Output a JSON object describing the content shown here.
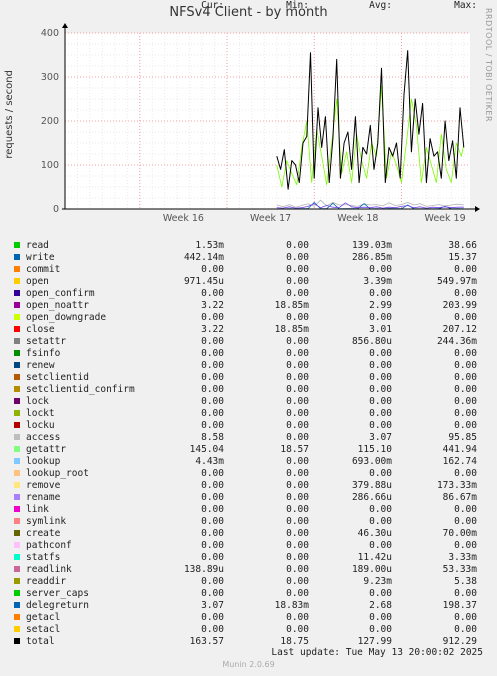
{
  "title": "NFSv4 Client - by month",
  "watermark": "RRDTOOL / TOBI OETIKER",
  "chart_data": {
    "type": "line",
    "title": "NFSv4 Client - by month",
    "ylabel": "requests / second",
    "xlabel": "",
    "ylim": [
      0,
      400
    ],
    "yticks": [
      0,
      100,
      200,
      300,
      400
    ],
    "xticks": [
      "Week 16",
      "Week 17",
      "Week 18",
      "Week 19"
    ],
    "grid": true,
    "series": [
      {
        "name": "total",
        "color": "#000000",
        "x_days": [
          17.0,
          17.3,
          17.6,
          17.9,
          18.2,
          18.5,
          18.8,
          19.1,
          19.4,
          19.7,
          20.0,
          20.3,
          20.6,
          20.9,
          21.2,
          21.5,
          21.8,
          22.1,
          22.4,
          22.7,
          23.0,
          23.3,
          23.6,
          23.9,
          24.2,
          24.5,
          24.8,
          25.1,
          25.4,
          25.7,
          26.0,
          26.3,
          26.6,
          26.9,
          27.2,
          27.5,
          27.8,
          28.1,
          28.4,
          28.7,
          29.0,
          29.3,
          29.6,
          29.9,
          30.2,
          30.5,
          30.8,
          31.1,
          31.4,
          31.7,
          32.0
        ],
        "values": [
          120,
          90,
          135,
          45,
          110,
          100,
          60,
          150,
          165,
          355,
          70,
          230,
          140,
          210,
          60,
          160,
          340,
          70,
          150,
          175,
          90,
          210,
          60,
          140,
          125,
          190,
          90,
          150,
          320,
          60,
          140,
          120,
          150,
          70,
          260,
          360,
          130,
          250,
          170,
          240,
          60,
          160,
          120,
          130,
          70,
          200,
          110,
          155,
          70,
          230,
          140
        ]
      },
      {
        "name": "access",
        "color": "#b4b4b4",
        "x_days": [
          17.0,
          17.5,
          18.0,
          18.5,
          19.0,
          19.5,
          20.0,
          20.5,
          21.0,
          21.5,
          22.0,
          22.5,
          23.0,
          23.5,
          24.0,
          24.5,
          25.0,
          25.5,
          26.0,
          26.5,
          27.0,
          27.5,
          28.0,
          28.5,
          29.0,
          29.5,
          30.0,
          30.5,
          31.0,
          31.5,
          32.0
        ],
        "values": [
          9,
          5,
          10,
          4,
          8,
          12,
          6,
          20,
          7,
          15,
          9,
          10,
          8,
          6,
          12,
          9,
          10,
          7,
          14,
          8,
          10,
          15,
          9,
          12,
          6,
          8,
          10,
          7,
          9,
          11,
          9
        ]
      },
      {
        "name": "getattr",
        "color": "#7cfc00",
        "x_days": [
          17.0,
          17.4,
          17.8,
          18.2,
          18.6,
          19.0,
          19.4,
          19.8,
          20.2,
          20.6,
          21.0,
          21.4,
          21.8,
          22.2,
          22.6,
          23.0,
          23.4,
          23.8,
          24.2,
          24.6,
          25.0,
          25.4,
          25.8,
          26.2,
          26.6,
          27.0,
          27.4,
          27.8,
          28.2,
          28.6,
          29.0,
          29.4,
          29.8,
          30.2,
          30.6,
          31.0,
          31.4,
          31.8,
          32.0
        ],
        "values": [
          100,
          50,
          110,
          80,
          55,
          140,
          200,
          60,
          180,
          120,
          55,
          150,
          250,
          80,
          130,
          60,
          170,
          110,
          70,
          150,
          120,
          280,
          70,
          130,
          100,
          60,
          150,
          250,
          190,
          60,
          140,
          100,
          60,
          170,
          90,
          60,
          150,
          120,
          145
        ]
      },
      {
        "name": "write",
        "color": "#0066b3",
        "x_days": [
          17.0,
          17.5,
          18.0,
          18.5,
          19.0,
          19.5,
          20.0,
          20.5,
          21.0,
          21.5,
          22.0,
          22.5,
          23.0,
          23.5,
          24.0,
          24.5,
          25.0,
          25.5,
          26.0,
          26.5,
          27.0,
          27.5,
          28.0,
          28.5,
          29.0,
          29.5,
          30.0,
          30.5,
          31.0,
          31.5,
          32.0
        ],
        "values": [
          0.5,
          0.3,
          1,
          0.4,
          0.6,
          0.8,
          15,
          1,
          0.6,
          13,
          0.5,
          1,
          0.6,
          0.8,
          12,
          0.5,
          0.9,
          0.4,
          1.2,
          0.6,
          0.6,
          9,
          0.8,
          0.4,
          1,
          0.5,
          0.7,
          6,
          0.4,
          0.6,
          0.5
        ]
      },
      {
        "name": "lookup",
        "color": "#7648ec",
        "x_days": [
          17.0,
          17.5,
          18.0,
          18.5,
          19.0,
          19.5,
          20.0,
          20.5,
          21.0,
          21.5,
          22.0,
          22.5,
          23.0,
          23.5,
          24.0,
          24.5,
          25.0,
          25.5,
          26.0,
          26.5,
          27.0,
          27.5,
          28.0,
          28.5,
          29.0,
          29.5,
          30.0,
          30.5,
          31.0,
          31.5,
          32.0
        ],
        "values": [
          3,
          2,
          5,
          2,
          3,
          6,
          12,
          3,
          8,
          4,
          3,
          14,
          5,
          3,
          4,
          3,
          5,
          2,
          4,
          3,
          6,
          8,
          3,
          5,
          2,
          4,
          3,
          5,
          3,
          4,
          4
        ]
      }
    ],
    "legend": {
      "headers": {
        "cur": "Cur:",
        "min": "Min:",
        "avg": "Avg:",
        "max": "Max:"
      },
      "rows": [
        {
          "name": "read",
          "color": "#00cc00",
          "cur": "1.53m",
          "min": "0.00",
          "avg": "139.03m",
          "max": "38.66"
        },
        {
          "name": "write",
          "color": "#0066b3",
          "cur": "442.14m",
          "min": "0.00",
          "avg": "286.85m",
          "max": "15.37"
        },
        {
          "name": "commit",
          "color": "#ff8000",
          "cur": "0.00",
          "min": "0.00",
          "avg": "0.00",
          "max": "0.00"
        },
        {
          "name": "open",
          "color": "#ffcc00",
          "cur": "971.45u",
          "min": "0.00",
          "avg": "3.39m",
          "max": "549.97m"
        },
        {
          "name": "open_confirm",
          "color": "#330099",
          "cur": "0.00",
          "min": "0.00",
          "avg": "0.00",
          "max": "0.00"
        },
        {
          "name": "open_noattr",
          "color": "#990099",
          "cur": "3.22",
          "min": "18.85m",
          "avg": "2.99",
          "max": "203.99"
        },
        {
          "name": "open_downgrade",
          "color": "#ccff00",
          "cur": "0.00",
          "min": "0.00",
          "avg": "0.00",
          "max": "0.00"
        },
        {
          "name": "close",
          "color": "#ff0000",
          "cur": "3.22",
          "min": "18.85m",
          "avg": "3.01",
          "max": "207.12"
        },
        {
          "name": "setattr",
          "color": "#808080",
          "cur": "0.00",
          "min": "0.00",
          "avg": "856.80u",
          "max": "244.36m"
        },
        {
          "name": "fsinfo",
          "color": "#008f00",
          "cur": "0.00",
          "min": "0.00",
          "avg": "0.00",
          "max": "0.00"
        },
        {
          "name": "renew",
          "color": "#00487d",
          "cur": "0.00",
          "min": "0.00",
          "avg": "0.00",
          "max": "0.00"
        },
        {
          "name": "setclientid",
          "color": "#b35a00",
          "cur": "0.00",
          "min": "0.00",
          "avg": "0.00",
          "max": "0.00"
        },
        {
          "name": "setclientid_confirm",
          "color": "#b38f00",
          "cur": "0.00",
          "min": "0.00",
          "avg": "0.00",
          "max": "0.00"
        },
        {
          "name": "lock",
          "color": "#6b006b",
          "cur": "0.00",
          "min": "0.00",
          "avg": "0.00",
          "max": "0.00"
        },
        {
          "name": "lockt",
          "color": "#8fb300",
          "cur": "0.00",
          "min": "0.00",
          "avg": "0.00",
          "max": "0.00"
        },
        {
          "name": "locku",
          "color": "#b30000",
          "cur": "0.00",
          "min": "0.00",
          "avg": "0.00",
          "max": "0.00"
        },
        {
          "name": "access",
          "color": "#bebebe",
          "cur": "8.58",
          "min": "0.00",
          "avg": "3.07",
          "max": "95.85"
        },
        {
          "name": "getattr",
          "color": "#80ff80",
          "cur": "145.04",
          "min": "18.57",
          "avg": "115.10",
          "max": "441.94"
        },
        {
          "name": "lookup",
          "color": "#80c9ff",
          "cur": "4.43m",
          "min": "0.00",
          "avg": "693.00m",
          "max": "162.74"
        },
        {
          "name": "lookup_root",
          "color": "#ffc080",
          "cur": "0.00",
          "min": "0.00",
          "avg": "0.00",
          "max": "0.00"
        },
        {
          "name": "remove",
          "color": "#ffe680",
          "cur": "0.00",
          "min": "0.00",
          "avg": "379.88u",
          "max": "173.33m"
        },
        {
          "name": "rename",
          "color": "#aa80ff",
          "cur": "0.00",
          "min": "0.00",
          "avg": "286.66u",
          "max": "86.67m"
        },
        {
          "name": "link",
          "color": "#ee00cc",
          "cur": "0.00",
          "min": "0.00",
          "avg": "0.00",
          "max": "0.00"
        },
        {
          "name": "symlink",
          "color": "#ff8080",
          "cur": "0.00",
          "min": "0.00",
          "avg": "0.00",
          "max": "0.00"
        },
        {
          "name": "create",
          "color": "#666600",
          "cur": "0.00",
          "min": "0.00",
          "avg": "46.30u",
          "max": "70.00m"
        },
        {
          "name": "pathconf",
          "color": "#ffbfff",
          "cur": "0.00",
          "min": "0.00",
          "avg": "0.00",
          "max": "0.00"
        },
        {
          "name": "statfs",
          "color": "#00ffcc",
          "cur": "0.00",
          "min": "0.00",
          "avg": "11.42u",
          "max": "3.33m"
        },
        {
          "name": "readlink",
          "color": "#cc6699",
          "cur": "138.89u",
          "min": "0.00",
          "avg": "189.00u",
          "max": "53.33m"
        },
        {
          "name": "readdir",
          "color": "#999900",
          "cur": "0.00",
          "min": "0.00",
          "avg": "9.23m",
          "max": "5.38"
        },
        {
          "name": "server_caps",
          "color": "#00cc00",
          "cur": "0.00",
          "min": "0.00",
          "avg": "0.00",
          "max": "0.00"
        },
        {
          "name": "delegreturn",
          "color": "#0066b3",
          "cur": "3.07",
          "min": "18.83m",
          "avg": "2.68",
          "max": "198.37"
        },
        {
          "name": "getacl",
          "color": "#ff8000",
          "cur": "0.00",
          "min": "0.00",
          "avg": "0.00",
          "max": "0.00"
        },
        {
          "name": "setacl",
          "color": "#ffcc00",
          "cur": "0.00",
          "min": "0.00",
          "avg": "0.00",
          "max": "0.00"
        },
        {
          "name": "total",
          "color": "#000000",
          "cur": "163.57",
          "min": "18.75",
          "avg": "127.99",
          "max": "912.29"
        }
      ]
    }
  },
  "last_update": "Last update: Tue May 13 20:00:02 2025",
  "footer": "Munin 2.0.69"
}
